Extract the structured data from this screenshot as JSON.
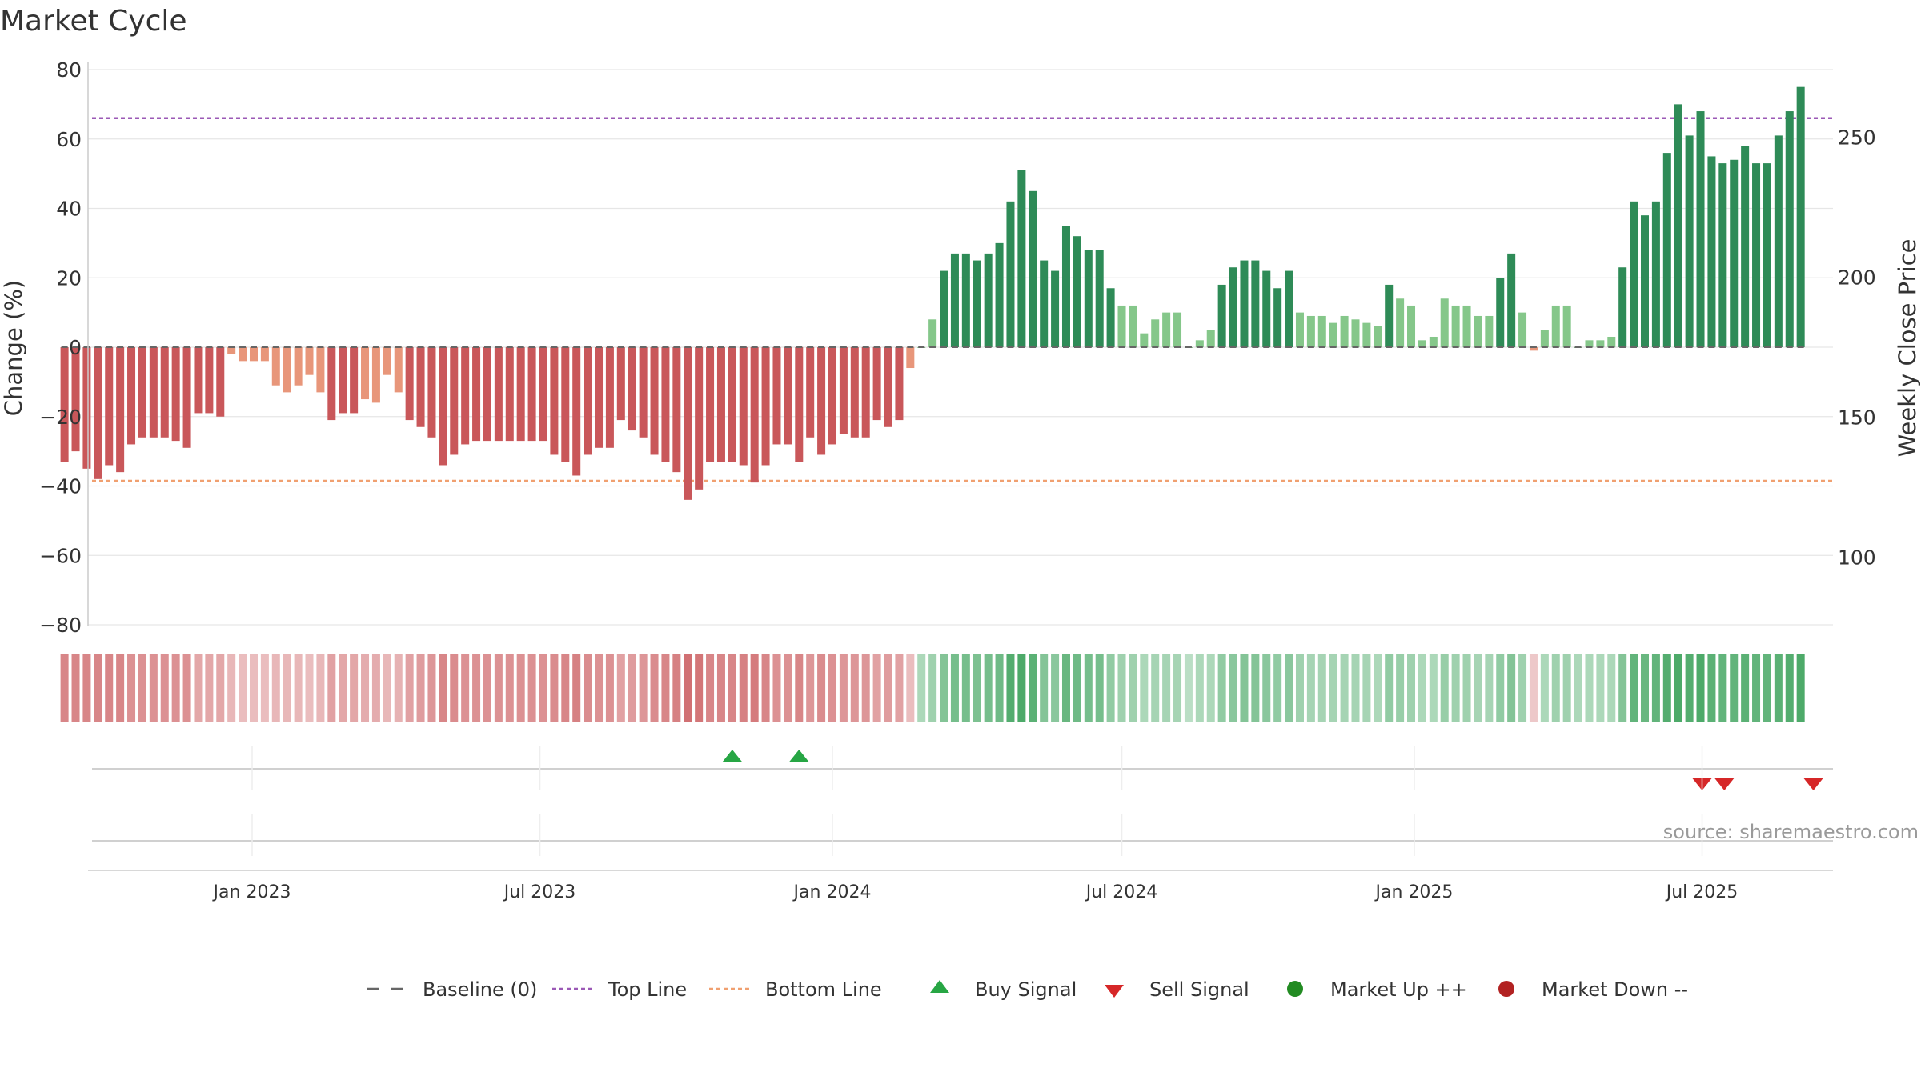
{
  "chart_data": {
    "type": "bar",
    "title": "Market Cycle",
    "ylabel": "Change (%)",
    "y2label": "Weekly Close Price",
    "ylim": [
      -80,
      80
    ],
    "y2lim": [
      100,
      250
    ],
    "yticks": [
      80,
      60,
      40,
      20,
      0,
      -20,
      -40,
      -60,
      -80
    ],
    "y2ticks": [
      250,
      200,
      150,
      100
    ],
    "top_line": 66,
    "bottom_line": -38.5,
    "x_start": "2022-09-05",
    "bar_interval_days": 7,
    "xticks": [
      {
        "label": "Jan 2023",
        "date": "2023-01-01"
      },
      {
        "label": "Jul 2023",
        "date": "2023-07-01"
      },
      {
        "label": "Jan 2024",
        "date": "2024-01-01"
      },
      {
        "label": "Jul 2024",
        "date": "2024-07-01"
      },
      {
        "label": "Jan 2025",
        "date": "2025-01-01"
      },
      {
        "label": "Jul 2025",
        "date": "2025-07-01"
      }
    ],
    "values": [
      -33,
      -30,
      -35,
      -38,
      -34,
      -36,
      -28,
      -26,
      -26,
      -26,
      -27,
      -29,
      -19,
      -19,
      -20,
      -2,
      -4,
      -4,
      -4,
      -11,
      -13,
      -11,
      -8,
      -13,
      -21,
      -19,
      -19,
      -15,
      -16,
      -8,
      -13,
      -21,
      -23,
      -26,
      -34,
      -31,
      -28,
      -27,
      -27,
      -27,
      -27,
      -27,
      -27,
      -27,
      -31,
      -33,
      -37,
      -31,
      -29,
      -29,
      -21,
      -24,
      -26,
      -31,
      -33,
      -36,
      -44,
      -41,
      -33,
      -33,
      -33,
      -34,
      -39,
      -34,
      -28,
      -28,
      -33,
      -26,
      -31,
      -28,
      -25,
      -26,
      -26,
      -21,
      -23,
      -21,
      -6,
      0,
      8,
      22,
      27,
      27,
      25,
      27,
      30,
      42,
      51,
      45,
      25,
      22,
      35,
      32,
      28,
      28,
      17,
      12,
      12,
      4,
      8,
      10,
      10,
      0,
      2,
      5,
      18,
      23,
      25,
      25,
      22,
      17,
      22,
      10,
      9,
      9,
      7,
      9,
      8,
      7,
      6,
      18,
      14,
      12,
      2,
      3,
      14,
      12,
      12,
      9,
      9,
      20,
      27,
      10,
      -1,
      5,
      12,
      12,
      0,
      2,
      2,
      3,
      23,
      42,
      38,
      42,
      56,
      70,
      61,
      68,
      55,
      53,
      54,
      58,
      53,
      53,
      61,
      68,
      75
    ],
    "strength": [
      0.8,
      0.8,
      0.8,
      0.8,
      0.8,
      0.8,
      0.7,
      0.7,
      0.7,
      0.7,
      0.7,
      0.7,
      0.5,
      0.5,
      0.5,
      0.35,
      0.3,
      0.3,
      0.3,
      0.35,
      0.35,
      0.35,
      0.3,
      0.35,
      0.55,
      0.5,
      0.5,
      0.45,
      0.45,
      0.35,
      0.4,
      0.55,
      0.6,
      0.65,
      0.8,
      0.75,
      0.7,
      0.7,
      0.7,
      0.7,
      0.7,
      0.7,
      0.7,
      0.7,
      0.75,
      0.8,
      0.85,
      0.75,
      0.7,
      0.7,
      0.55,
      0.6,
      0.65,
      0.75,
      0.8,
      0.85,
      1,
      0.95,
      0.8,
      0.8,
      0.8,
      0.85,
      0.9,
      0.8,
      0.7,
      0.7,
      0.8,
      0.65,
      0.75,
      0.7,
      0.65,
      0.65,
      0.65,
      0.55,
      0.6,
      0.55,
      0.3,
      0.3,
      0.4,
      0.6,
      0.7,
      0.7,
      0.65,
      0.7,
      0.75,
      0.95,
      1,
      0.9,
      0.6,
      0.55,
      0.8,
      0.75,
      0.7,
      0.7,
      0.5,
      0.4,
      0.4,
      0.3,
      0.35,
      0.35,
      0.35,
      0.2,
      0.3,
      0.3,
      0.5,
      0.55,
      0.6,
      0.6,
      0.55,
      0.5,
      0.55,
      0.4,
      0.35,
      0.35,
      0.35,
      0.35,
      0.35,
      0.35,
      0.3,
      0.5,
      0.45,
      0.4,
      0.3,
      0.3,
      0.45,
      0.4,
      0.4,
      0.35,
      0.35,
      0.5,
      0.6,
      0.4,
      0.2,
      0.3,
      0.4,
      0.4,
      0.3,
      0.3,
      0.3,
      0.3,
      0.6,
      0.85,
      0.8,
      0.85,
      0.95,
      1,
      0.95,
      1,
      0.9,
      0.85,
      0.85,
      0.9,
      0.85,
      0.85,
      0.9,
      0.95,
      1
    ],
    "buy_signals": [
      "2023-10-30",
      "2023-12-11"
    ],
    "sell_signals": [
      "2025-07-01",
      "2025-07-15",
      "2025-09-09"
    ],
    "legend": [
      {
        "label": "Baseline (0)",
        "marker": "dash-gray"
      },
      {
        "label": "Top Line",
        "marker": "dotted-purple"
      },
      {
        "label": "Bottom Line",
        "marker": "dotted-orange"
      },
      {
        "label": "Buy Signal",
        "marker": "triangle-up-green"
      },
      {
        "label": "Sell Signal",
        "marker": "triangle-down-red"
      },
      {
        "label": "Market Up ++",
        "marker": "circle-green"
      },
      {
        "label": "Market Down --",
        "marker": "circle-red"
      }
    ],
    "legend_position": "bottom-center",
    "grid": true
  },
  "source_note": "source: sharemaestro.com",
  "colors": {
    "neg_dark": "#c9575a",
    "neg_light": "#e8967a",
    "pos_dark": "#2e8b57",
    "pos_light": "#85c78a",
    "top_line": "#9b59b6",
    "bottom_line": "#f0a070",
    "buy": "#27a644",
    "sell": "#d62728",
    "market_up": "#228b22",
    "market_down": "#b22222",
    "grid": "#e6e6e6",
    "axis": "#cccccc"
  }
}
